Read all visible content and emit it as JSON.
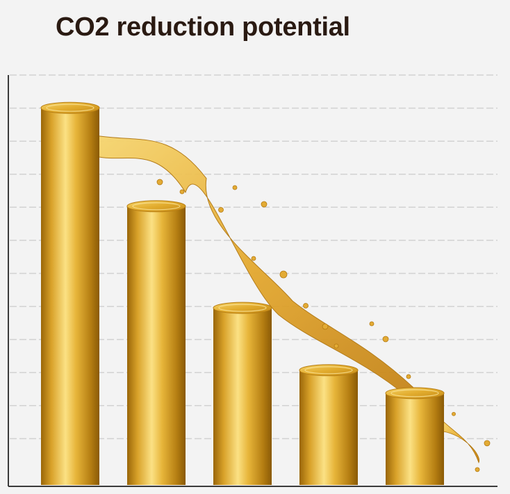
{
  "title": "CO2 reduction potential",
  "colors": {
    "background": "#f3f3f3",
    "gold_dark": "#a8720c",
    "gold_mid": "#e6b434",
    "gold_light": "#fbe184",
    "grid": "#d2d2d2",
    "axis": "#3a3a3a",
    "title": "#2a1a12"
  },
  "chart_data": {
    "type": "bar",
    "title": "CO2 reduction potential",
    "categories": [
      "",
      "",
      "",
      "",
      ""
    ],
    "values": [
      11.5,
      8.5,
      5.4,
      3.5,
      2.8
    ],
    "xlabel": "",
    "ylabel": "",
    "ylim": [
      0,
      12.5
    ],
    "grid": true,
    "legend": "none",
    "style": "golden 3D cylinders with a flowing liquid splash cascading from the tallest bar down across the tops of the others"
  }
}
